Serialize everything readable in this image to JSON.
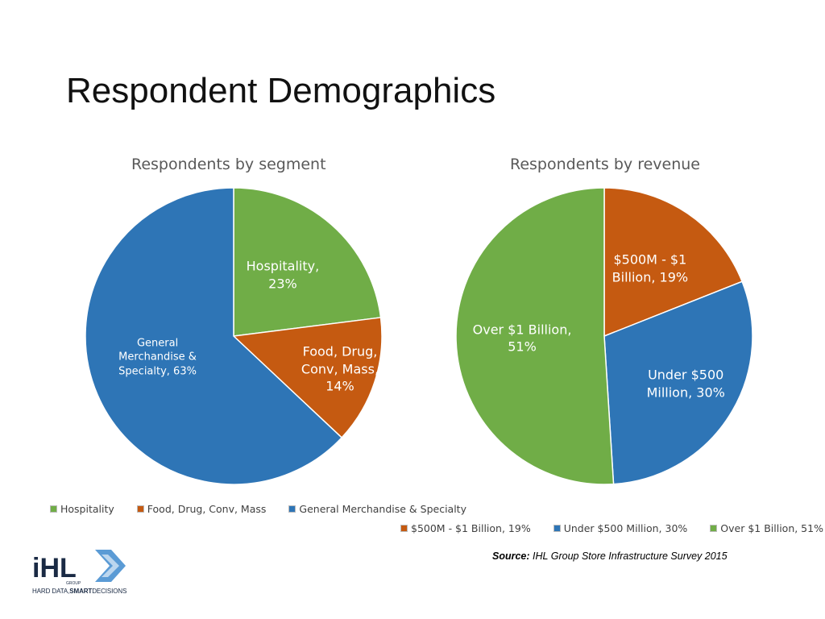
{
  "slide": {
    "title": "Respondent Demographics"
  },
  "colors": {
    "green": "#70AD47",
    "orange": "#C55A11",
    "blue": "#2E75B6"
  },
  "chart_data": [
    {
      "type": "pie",
      "title": "Respondents by segment",
      "legend_position": "bottom",
      "slices": [
        {
          "name": "Hospitality",
          "value": 23,
          "color": "#70AD47",
          "label": "Hospitality,\n23%"
        },
        {
          "name": "Food, Drug, Conv, Mass",
          "value": 14,
          "color": "#C55A11",
          "label": "Food, Drug,\nConv, Mass,\n14%"
        },
        {
          "name": "General Merchandise & Specialty",
          "value": 63,
          "color": "#2E75B6",
          "label": "General\nMerchandise &\nSpecialty, 63%"
        }
      ],
      "legend": [
        "Hospitality",
        "Food, Drug, Conv, Mass",
        "General Merchandise & Specialty"
      ]
    },
    {
      "type": "pie",
      "title": "Respondents by revenue",
      "legend_position": "bottom",
      "slices": [
        {
          "name": "$500M - $1 Billion, 19%",
          "value": 19,
          "color": "#C55A11",
          "label": "$500M - $1\nBillion, 19%"
        },
        {
          "name": "Under $500 Million, 30%",
          "value": 30,
          "color": "#2E75B6",
          "label": "Under $500\nMillion, 30%"
        },
        {
          "name": "Over $1 Billion, 51%",
          "value": 51,
          "color": "#70AD47",
          "label": "Over $1 Billion,\n51%"
        }
      ],
      "legend": [
        "$500M - $1 Billion, 19%",
        "Under $500 Million, 30%",
        "Over $1 Billion, 51%"
      ]
    }
  ],
  "source": {
    "label": "Source:",
    "text": "IHL Group Store Infrastructure Survey 2015"
  },
  "logo": {
    "text": "iHL",
    "small": "GROUP",
    "tagline_a": "HARD DATA,",
    "tagline_b": "SMART",
    "tagline_c": "DECISIONS"
  }
}
